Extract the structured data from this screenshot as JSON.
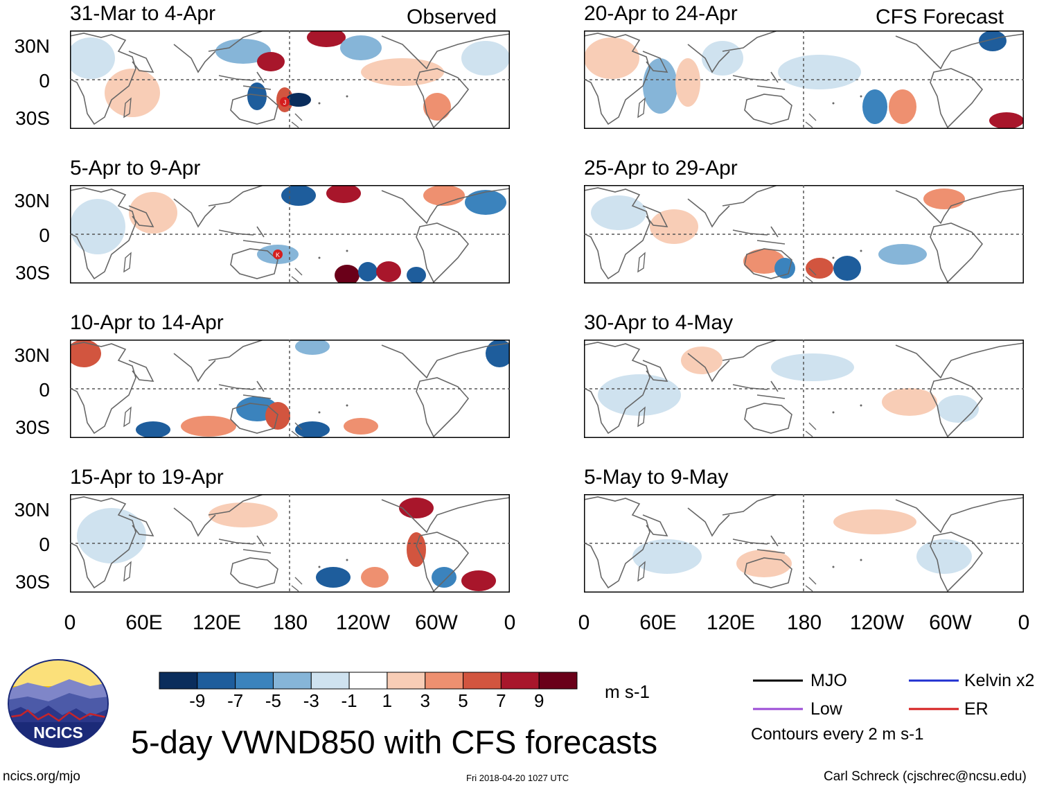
{
  "header": {
    "observed_label": "Observed",
    "forecast_label": "CFS Forecast"
  },
  "panels": {
    "observed": [
      {
        "title": "31-Mar to 4-Apr"
      },
      {
        "title": "5-Apr to 9-Apr"
      },
      {
        "title": "10-Apr to 14-Apr"
      },
      {
        "title": "15-Apr to 19-Apr"
      }
    ],
    "forecast": [
      {
        "title": "20-Apr to 24-Apr"
      },
      {
        "title": "25-Apr to 29-Apr"
      },
      {
        "title": "30-Apr to 4-May"
      },
      {
        "title": "5-May to 9-May"
      }
    ]
  },
  "axes": {
    "y_ticks": [
      "30N",
      "0",
      "30S"
    ],
    "x_ticks": [
      "0",
      "60E",
      "120E",
      "180",
      "120W",
      "60W",
      "0"
    ]
  },
  "colorbar": {
    "labels": [
      "-9",
      "-7",
      "-5",
      "-3",
      "-1",
      "1",
      "3",
      "5",
      "7",
      "9"
    ],
    "colors": [
      "#0a2d5c",
      "#1e5d9c",
      "#3b83bd",
      "#86b5d8",
      "#cfe2ef",
      "#ffffff",
      "#f8cdb6",
      "#ee9070",
      "#d2553f",
      "#a8162b",
      "#6a0019"
    ],
    "units": "m s-1"
  },
  "legend": {
    "mjo": {
      "label": "MJO",
      "color": "#000000"
    },
    "kelvin": {
      "label": "Kelvin x2",
      "color": "#1f2fd0"
    },
    "low": {
      "label": "Low",
      "color": "#9b4bd6"
    },
    "er": {
      "label": "ER",
      "color": "#d51e1e"
    },
    "note": "Contours every 2 m s-1"
  },
  "logo": {
    "text": "NCICS"
  },
  "footer": {
    "title": "5-day VWND850 with CFS forecasts",
    "url": "ncics.org/mjo",
    "timestamp": "Fri 2018-04-20 1027 UTC",
    "author": "Carl Schreck (cjschrec@ncsu.edu)"
  },
  "markers": [
    {
      "label": "J",
      "panel": "observed.0"
    },
    {
      "label": "K",
      "panel": "observed.1"
    }
  ]
}
